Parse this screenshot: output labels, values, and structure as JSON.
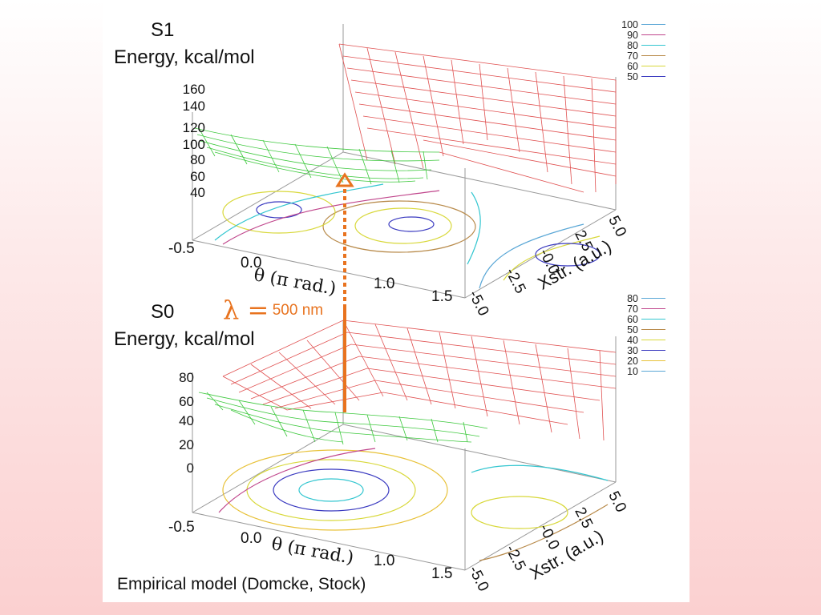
{
  "s1": {
    "title": "S1",
    "ylabel": "Energy, kcal/mol",
    "zticks": [
      "160",
      "140",
      "120",
      "100",
      "80",
      "60",
      "40"
    ],
    "legend": [
      {
        "value": "100",
        "color": "#5aa7d6"
      },
      {
        "value": "90",
        "color": "#c0468c"
      },
      {
        "value": "80",
        "color": "#33c6d0"
      },
      {
        "value": "70",
        "color": "#b88a4a"
      },
      {
        "value": "60",
        "color": "#d8d83a"
      },
      {
        "value": "50",
        "color": "#3a3ac0"
      }
    ],
    "theta_ticks": [
      "-0.5",
      "0.0",
      "1.0",
      "1.5"
    ],
    "x_ticks": [
      "5.0",
      "2.5",
      "-0.0",
      "-2.5",
      "-5.0"
    ],
    "theta_label": "θ (π rad.)",
    "x_label": "Xstr. (a.u.)"
  },
  "s0": {
    "title": "S0",
    "ylabel": "Energy, kcal/mol",
    "zticks": [
      "80",
      "60",
      "40",
      "20",
      "0"
    ],
    "legend": [
      {
        "value": "80",
        "color": "#5aa7d6"
      },
      {
        "value": "70",
        "color": "#c0468c"
      },
      {
        "value": "60",
        "color": "#33c6d0"
      },
      {
        "value": "50",
        "color": "#b88a4a"
      },
      {
        "value": "40",
        "color": "#d8d83a"
      },
      {
        "value": "30",
        "color": "#3a3ac0"
      },
      {
        "value": "20",
        "color": "#e8c23a"
      },
      {
        "value": "10",
        "color": "#5aa7d6"
      }
    ],
    "theta_ticks": [
      "-0.5",
      "0.0",
      "1.0",
      "1.5"
    ],
    "x_ticks": [
      "5.0",
      "2.5",
      "-0.0",
      "-2.5",
      "-5.0"
    ],
    "theta_label": "θ (π rad.)",
    "x_label": "Xstr. (a.u.)"
  },
  "excitation": {
    "symbol": "λ =",
    "value": "500 nm",
    "color": "#e8731f"
  },
  "caption": "Empirical model (Domcke, Stock)",
  "surface_colors": {
    "mesh_red": "#e05050",
    "mesh_green": "#3cc83c"
  }
}
